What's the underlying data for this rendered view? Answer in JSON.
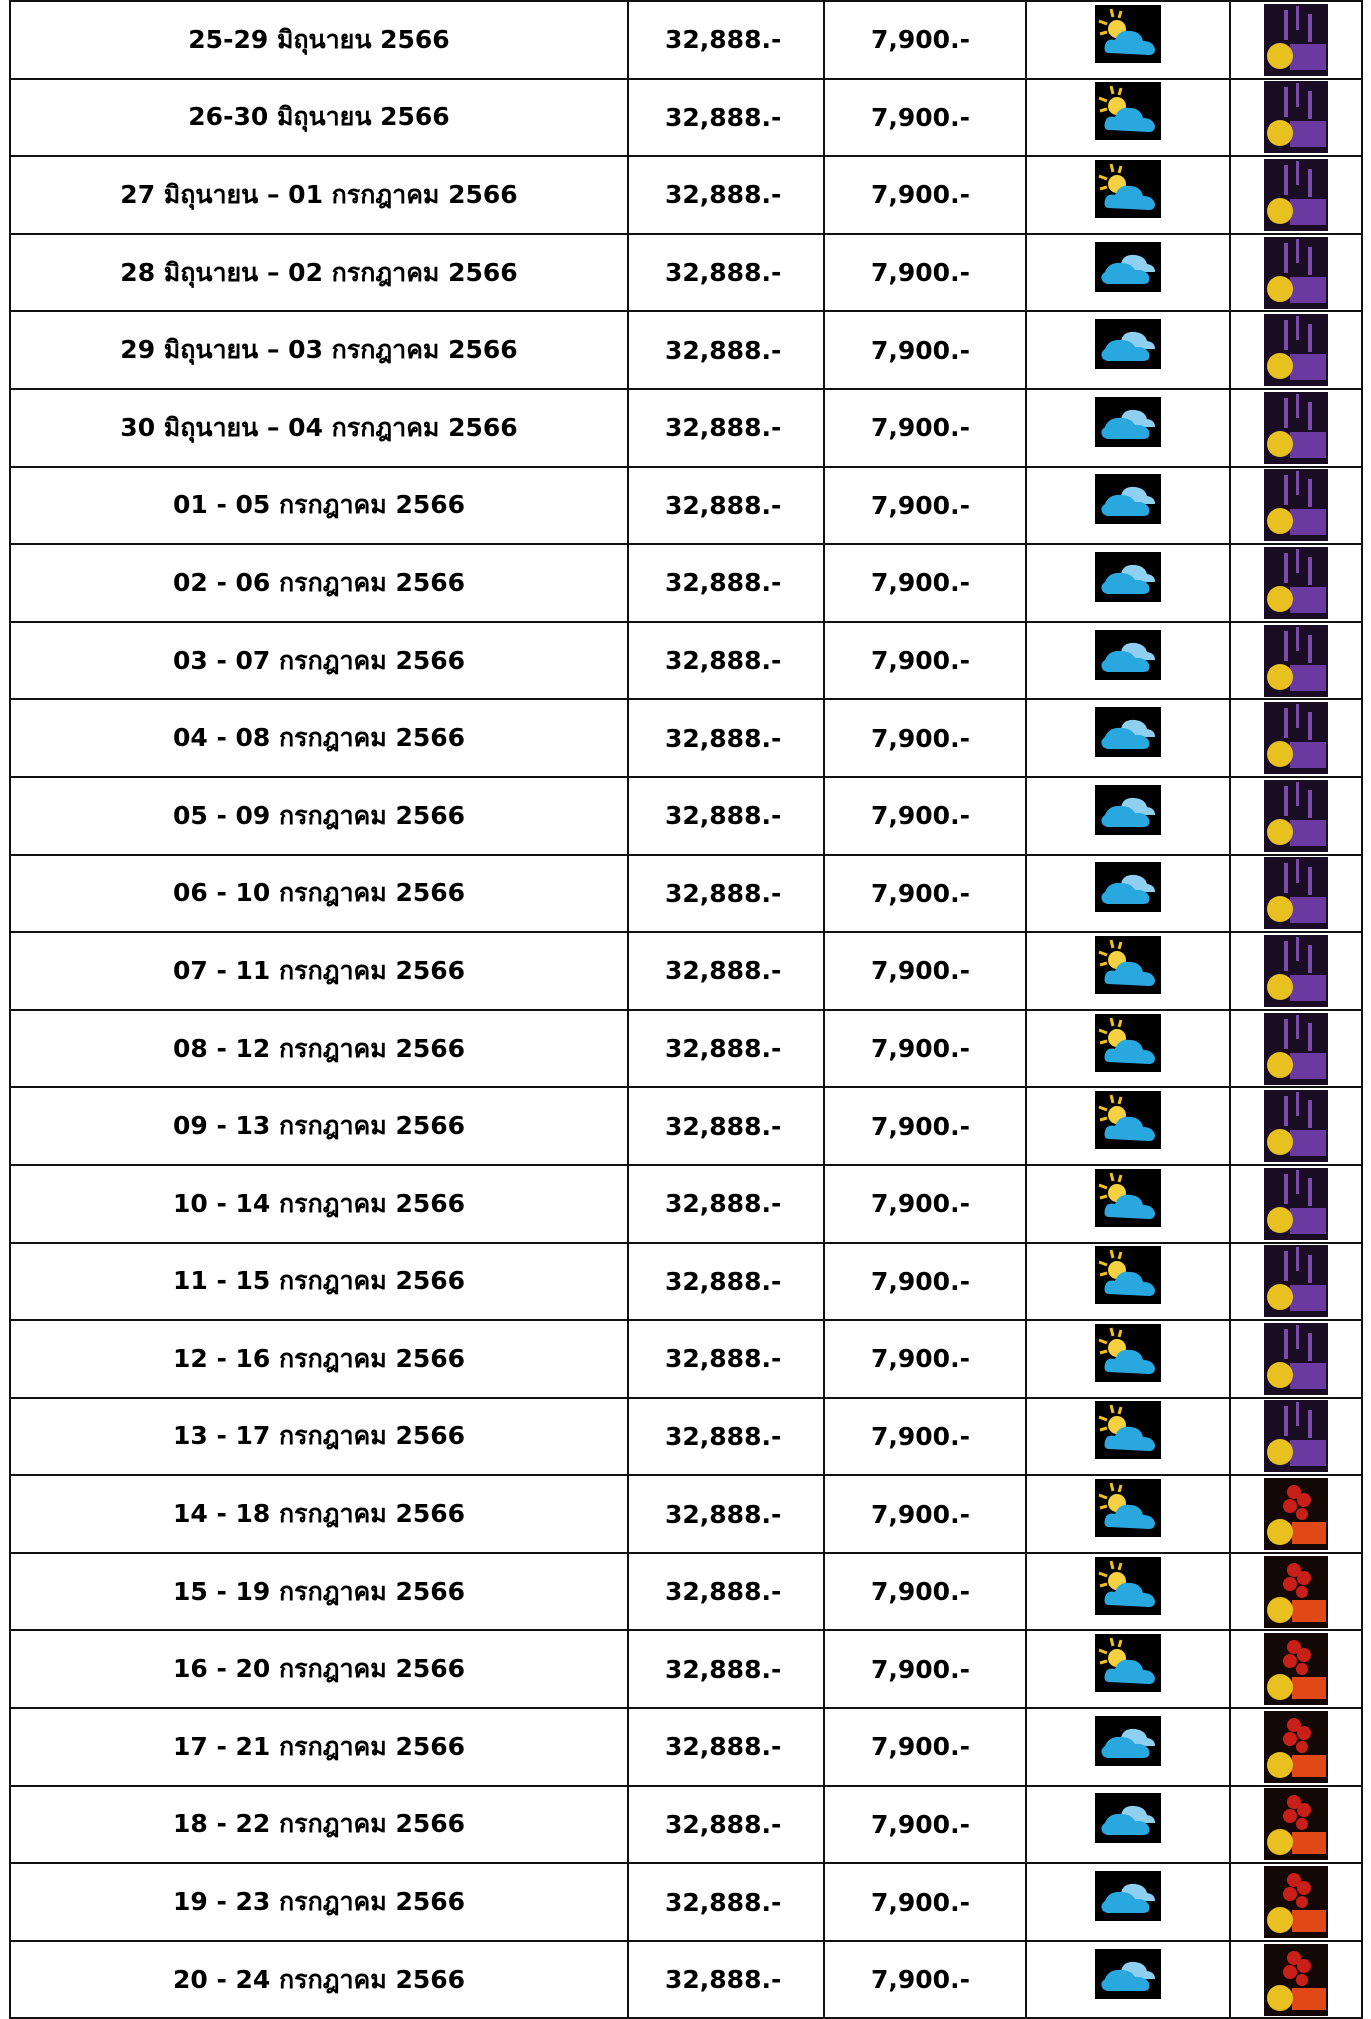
{
  "table": {
    "rows": [
      [
        "25-29 มิถุนายน 2566",
        "32,888.-",
        "7,900.-"
      ],
      [
        "26-30 มิถุนายน 2566",
        "32,888.-",
        "7,900.-"
      ],
      [
        "27 มิถุนายน – 01 กรกฎาคม 2566",
        "32,888.-",
        "7,900.-"
      ],
      [
        "28 มิถุนายน – 02 กรกฎาคม 2566",
        "32,888.-",
        "7,900.-"
      ],
      [
        "29 มิถุนายน – 03 กรกฎาคม 2566",
        "32,888.-",
        "7,900.-"
      ],
      [
        "30 มิถุนายน – 04 กรกฎาคม 2566",
        "32,888.-",
        "7,900.-"
      ],
      [
        "01 - 05 กรกฎาคม 2566",
        "32,888.-",
        "7,900.-"
      ],
      [
        "02 - 06 กรกฎาคม 2566",
        "32,888.-",
        "7,900.-"
      ],
      [
        "03 - 07 กรกฎาคม 2566",
        "32,888.-",
        "7,900.-"
      ],
      [
        "04 - 08 กรกฎาคม 2566",
        "32,888.-",
        "7,900.-"
      ],
      [
        "05 - 09 กรกฎาคม 2566",
        "32,888.-",
        "7,900.-"
      ],
      [
        "06 - 10 กรกฎาคม 2566",
        "32,888.-",
        "7,900.-"
      ],
      [
        "07 - 11 กรกฎาคม 2566",
        "32,888.-",
        "7,900.-"
      ],
      [
        "08 - 12 กรกฎาคม 2566",
        "32,888.-",
        "7,900.-"
      ],
      [
        "09 - 13 กรกฎาคม 2566",
        "32,888.-",
        "7,900.-"
      ],
      [
        "10 - 14 กรกฎาคม 2566",
        "32,888.-",
        "7,900.-"
      ],
      [
        "11 - 15 กรกฎาคม 2566",
        "32,888.-",
        "7,900.-"
      ],
      [
        "12 - 16 กรกฎาคม 2566",
        "32,888.-",
        "7,900.-"
      ],
      [
        "13 - 17 กรกฎาคม 2566",
        "32,888.-",
        "7,900.-"
      ],
      [
        "14 - 18 กรกฎาคม 2566",
        "32,888.-",
        "7,900.-"
      ],
      [
        "15 - 19 กรกฎาคม 2566",
        "32,888.-",
        "7,900.-"
      ],
      [
        "16 - 20 กรกฎาคม 2566",
        "32,888.-",
        "7,900.-"
      ],
      [
        "17 - 21 กรกฎาคม 2566",
        "32,888.-",
        "7,900.-"
      ],
      [
        "18 - 22 กรกฎาคม 2566",
        "32,888.-",
        "7,900.-"
      ],
      [
        "19 - 23 กรกฎาคม 2566",
        "32,888.-",
        "7,900.-"
      ],
      [
        "20 - 24 กรกฎาคม 2566",
        "32,888.-",
        "7,900.-"
      ]
    ]
  }
}
